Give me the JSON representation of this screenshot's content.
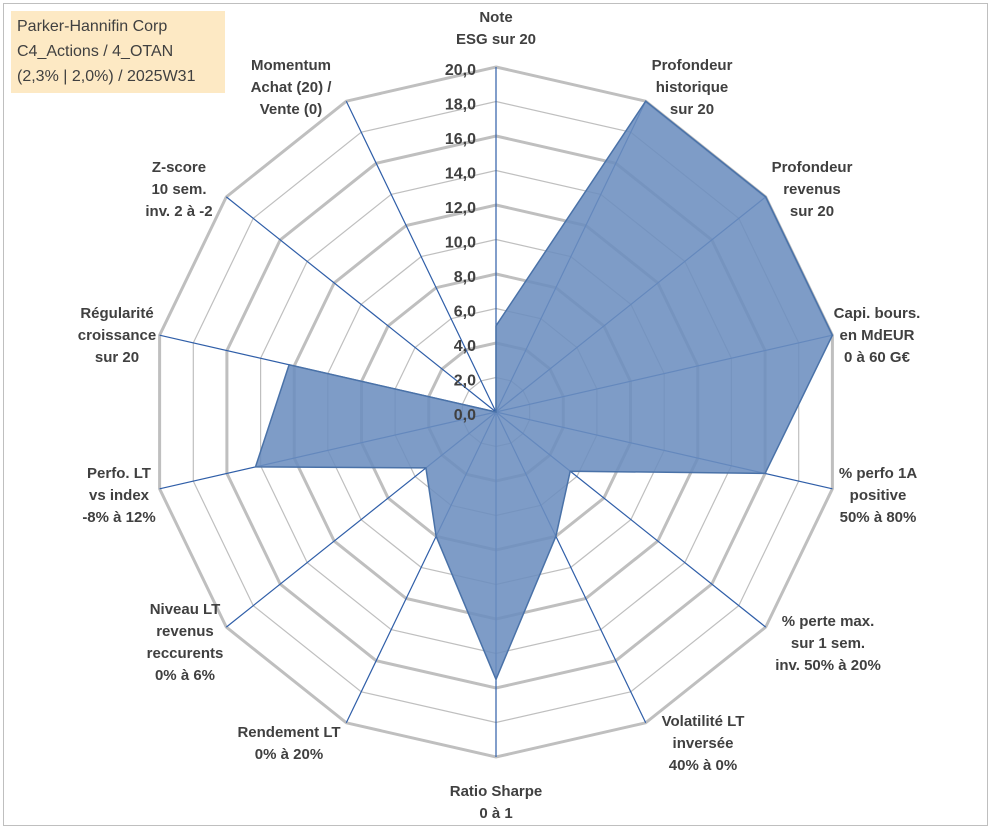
{
  "title_box": {
    "line1": "Parker-Hannifin Corp",
    "line2": "C4_Actions / 4_OTAN",
    "line3": "(2,3% | 2,0%) / 2025W31"
  },
  "chart_data": {
    "type": "radar",
    "title": "",
    "rlim": [
      0,
      20
    ],
    "ticks": [
      0,
      2,
      4,
      6,
      8,
      10,
      12,
      14,
      16,
      18,
      20
    ],
    "tick_labels": [
      "0,0",
      "2,0",
      "4,0",
      "6,0",
      "8,0",
      "10,0",
      "12,0",
      "14,0",
      "16,0",
      "18,0",
      "20,0"
    ],
    "grid": true,
    "legend": "none",
    "categories": [
      [
        "Note",
        "ESG sur 20"
      ],
      [
        "Profondeur",
        "historique",
        "sur 20"
      ],
      [
        "Profondeur",
        "revenus",
        "sur 20"
      ],
      [
        "Capi. bours.",
        "en MdEUR",
        "0 à 60 G€"
      ],
      [
        "% perfo 1A",
        "positive",
        "50% à 80%"
      ],
      [
        "% perte max.",
        "sur 1 sem.",
        "inv. 50% à 20%"
      ],
      [
        "Volatilité LT",
        "inversée",
        "40% à 0%"
      ],
      [
        "Ratio Sharpe",
        "0 à 1"
      ],
      [
        "Rendement LT",
        "0% à 20%"
      ],
      [
        "Niveau LT",
        "revenus",
        "reccurents",
        "0% à 6%"
      ],
      [
        "Perfo. LT",
        "vs index",
        "-8% à 12%"
      ],
      [
        "Régularité",
        "croissance",
        "sur 20"
      ],
      [
        "Z-score",
        "10 sem.",
        "inv. 2 à -2"
      ],
      [
        "Momentum",
        "Achat (20) /",
        "Vente (0)"
      ]
    ],
    "series": [
      {
        "values": [
          5.0,
          20.0,
          20.0,
          20.0,
          16.0,
          5.5,
          8.0,
          15.5,
          8.0,
          5.2,
          14.3,
          12.3,
          0.0,
          0.0
        ],
        "color": "#6c8ebf"
      }
    ],
    "colors": {
      "fill": "#6c8ebf",
      "stroke": "#4a72a8",
      "grid": "#bfbfbf",
      "spoke": "#2f5ea8",
      "text": "#404040"
    }
  }
}
